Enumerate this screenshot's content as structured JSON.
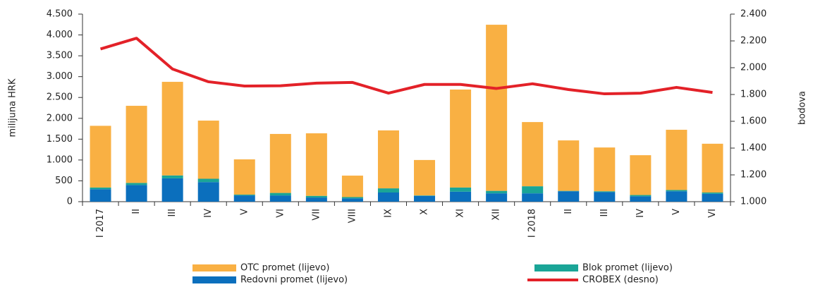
{
  "chart_data": {
    "type": "bar-line",
    "y_label": "milijuna HRK",
    "y2_label": "bodova",
    "categories": [
      "I 2017",
      "II",
      "III",
      "IV",
      "V",
      "VI",
      "VII",
      "VIII",
      "IX",
      "X",
      "XI",
      "XII",
      "I 2018",
      "II",
      "III",
      "IV",
      "V",
      "VI"
    ],
    "series": [
      {
        "name": "Redovni promet (lijevo)",
        "color": "#0b6fbd",
        "type": "bar",
        "values": [
          300,
          400,
          560,
          470,
          150,
          150,
          100,
          80,
          220,
          140,
          240,
          200,
          200,
          250,
          230,
          130,
          250,
          190
        ]
      },
      {
        "name": "Blok promet (lijevo)",
        "color": "#1aa597",
        "type": "bar",
        "values": [
          40,
          50,
          70,
          80,
          20,
          60,
          40,
          30,
          100,
          10,
          100,
          60,
          170,
          10,
          20,
          30,
          30,
          30
        ]
      },
      {
        "name": "OTC promet (lijevo)",
        "color": "#f9b043",
        "type": "bar",
        "values": [
          1480,
          1850,
          2245,
          1395,
          845,
          1415,
          1500,
          515,
          1390,
          850,
          2350,
          3985,
          1540,
          1210,
          1050,
          955,
          1445,
          1170
        ]
      },
      {
        "name": "CROBEX (desno)",
        "color": "#e32128",
        "type": "line",
        "axis": "y2",
        "values": [
          2140,
          2220,
          1990,
          1895,
          1863,
          1865,
          1885,
          1890,
          1810,
          1875,
          1875,
          1845,
          1880,
          1837,
          1805,
          1810,
          1853,
          1815
        ]
      }
    ],
    "ylim": [
      0,
      4500
    ],
    "yticks": [
      0,
      500,
      {
        "value": 1000,
        "label": "1.000"
      },
      {
        "value": 1500,
        "label": "1.500"
      },
      {
        "value": 2000,
        "label": "2.000"
      },
      {
        "value": 2500,
        "label": "2.500"
      },
      {
        "value": 3000,
        "label": "3.000"
      },
      {
        "value": 3500,
        "label": "3.500"
      },
      {
        "value": 4000,
        "label": "4.000"
      },
      {
        "value": 4500,
        "label": "4.500"
      }
    ],
    "y2lim": [
      1000,
      2400
    ],
    "y2ticks": [
      {
        "value": 1000,
        "label": "1.000"
      },
      {
        "value": 1200,
        "label": "1.200"
      },
      {
        "value": 1400,
        "label": "1.400"
      },
      {
        "value": 1600,
        "label": "1.600"
      },
      {
        "value": 1800,
        "label": "1.800"
      },
      {
        "value": 2000,
        "label": "2.000"
      },
      {
        "value": 2200,
        "label": "2.200"
      },
      {
        "value": 2400,
        "label": "2.400"
      }
    ]
  }
}
